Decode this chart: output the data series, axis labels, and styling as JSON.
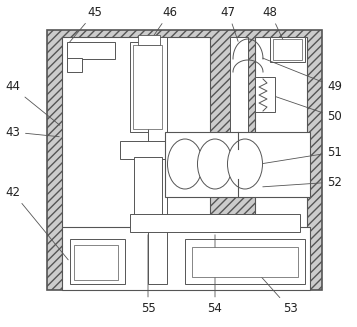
{
  "fig_width": 3.57,
  "fig_height": 3.27,
  "dpi": 100,
  "bg_color": "#ffffff",
  "line_color": "#555555",
  "hatch_color": "#cccccc",
  "hatch": "////",
  "lw_outer": 1.2,
  "lw_main": 0.8,
  "lw_detail": 0.6,
  "label_fs": 8.5
}
